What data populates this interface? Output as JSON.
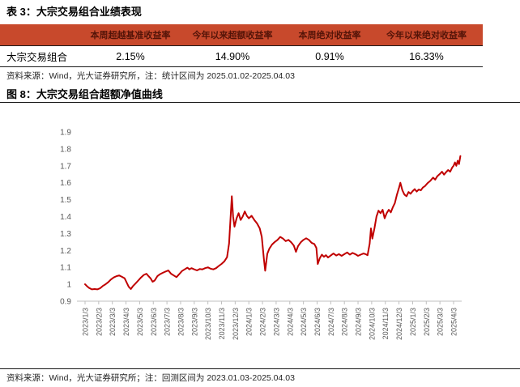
{
  "table": {
    "title": "表 3：大宗交易组合业绩表现",
    "columns": [
      "",
      "本周超越基准收益率",
      "今年以来超额收益率",
      "本周绝对收益率",
      "今年以来绝对收益率"
    ],
    "rows": [
      {
        "name": "大宗交易组合",
        "values": [
          "2.15%",
          "14.90%",
          "0.91%",
          "16.33%"
        ]
      }
    ],
    "source_note": "资料来源：Wind，光大证券研究所，注：统计区间为 2025.01.02-2025.04.03",
    "header_bg": "#C8492C",
    "header_text_color": "#541408"
  },
  "figure": {
    "title": "图 8：大宗交易组合超额净值曲线",
    "source_note": "资料来源：Wind，光大证券研究所；注：回测区间为 2023.01.03-2025.04.03"
  },
  "chart_data": {
    "type": "line",
    "title": "大宗交易组合超额净值曲线",
    "line_color": "#C00000",
    "axis_color": "#BFBFBF",
    "tick_label_color": "#595959",
    "grid": false,
    "legend_position": "none",
    "ylim": [
      0.9,
      1.9
    ],
    "y_tick_labels": [
      "1.9",
      "1.8",
      "1.7",
      "1.6",
      "1.5",
      "1.4",
      "1.3",
      "1.2",
      "1.1",
      "1",
      "0.9"
    ],
    "x_tick_labels": [
      "2023/1/3",
      "2023/2/3",
      "2023/3/3",
      "2023/4/3",
      "2023/5/3",
      "2023/6/3",
      "2023/7/3",
      "2023/8/3",
      "2023/9/3",
      "2023/10/3",
      "2023/11/3",
      "2023/12/3",
      "2024/1/3",
      "2024/2/3",
      "2024/3/3",
      "2024/4/3",
      "2024/5/3",
      "2024/6/3",
      "2024/7/3",
      "2024/8/3",
      "2024/9/3",
      "2024/10/3",
      "2024/11/3",
      "2024/12/3",
      "2025/1/3",
      "2025/2/3",
      "2025/3/3",
      "2025/4/3"
    ],
    "series": [
      {
        "name": "大宗交易组合超额净值",
        "x_unit": "months_since_2023/1/3",
        "points": [
          [
            0,
            1.0
          ],
          [
            0.15,
            0.988
          ],
          [
            0.3,
            0.978
          ],
          [
            0.5,
            0.97
          ],
          [
            0.7,
            0.972
          ],
          [
            0.9,
            0.97
          ],
          [
            1.1,
            0.976
          ],
          [
            1.3,
            0.99
          ],
          [
            1.5,
            1.0
          ],
          [
            1.7,
            1.012
          ],
          [
            1.9,
            1.028
          ],
          [
            2.1,
            1.04
          ],
          [
            2.3,
            1.048
          ],
          [
            2.5,
            1.052
          ],
          [
            2.7,
            1.044
          ],
          [
            2.9,
            1.035
          ],
          [
            3.05,
            1.01
          ],
          [
            3.2,
            0.985
          ],
          [
            3.35,
            0.972
          ],
          [
            3.5,
            0.988
          ],
          [
            3.7,
            1.005
          ],
          [
            3.9,
            1.022
          ],
          [
            4.1,
            1.04
          ],
          [
            4.3,
            1.055
          ],
          [
            4.5,
            1.062
          ],
          [
            4.65,
            1.048
          ],
          [
            4.8,
            1.035
          ],
          [
            4.95,
            1.015
          ],
          [
            5.1,
            1.022
          ],
          [
            5.3,
            1.048
          ],
          [
            5.5,
            1.06
          ],
          [
            5.7,
            1.068
          ],
          [
            5.9,
            1.075
          ],
          [
            6.1,
            1.082
          ],
          [
            6.3,
            1.062
          ],
          [
            6.5,
            1.052
          ],
          [
            6.7,
            1.042
          ],
          [
            6.9,
            1.06
          ],
          [
            7.1,
            1.078
          ],
          [
            7.3,
            1.088
          ],
          [
            7.5,
            1.098
          ],
          [
            7.65,
            1.088
          ],
          [
            7.8,
            1.095
          ],
          [
            8,
            1.088
          ],
          [
            8.2,
            1.082
          ],
          [
            8.4,
            1.09
          ],
          [
            8.6,
            1.088
          ],
          [
            8.8,
            1.095
          ],
          [
            9,
            1.1
          ],
          [
            9.2,
            1.092
          ],
          [
            9.4,
            1.088
          ],
          [
            9.6,
            1.095
          ],
          [
            9.8,
            1.108
          ],
          [
            10,
            1.12
          ],
          [
            10.2,
            1.135
          ],
          [
            10.4,
            1.16
          ],
          [
            10.55,
            1.24
          ],
          [
            10.65,
            1.38
          ],
          [
            10.75,
            1.52
          ],
          [
            10.85,
            1.4
          ],
          [
            10.95,
            1.34
          ],
          [
            11.1,
            1.39
          ],
          [
            11.25,
            1.42
          ],
          [
            11.4,
            1.38
          ],
          [
            11.55,
            1.4
          ],
          [
            11.7,
            1.43
          ],
          [
            11.85,
            1.405
          ],
          [
            12,
            1.39
          ],
          [
            12.2,
            1.405
          ],
          [
            12.4,
            1.38
          ],
          [
            12.6,
            1.36
          ],
          [
            12.8,
            1.33
          ],
          [
            12.95,
            1.28
          ],
          [
            13.1,
            1.15
          ],
          [
            13.2,
            1.08
          ],
          [
            13.35,
            1.18
          ],
          [
            13.5,
            1.21
          ],
          [
            13.7,
            1.235
          ],
          [
            13.9,
            1.25
          ],
          [
            14.1,
            1.262
          ],
          [
            14.3,
            1.28
          ],
          [
            14.5,
            1.27
          ],
          [
            14.7,
            1.255
          ],
          [
            14.9,
            1.262
          ],
          [
            15.1,
            1.248
          ],
          [
            15.3,
            1.228
          ],
          [
            15.45,
            1.192
          ],
          [
            15.6,
            1.225
          ],
          [
            15.8,
            1.248
          ],
          [
            16,
            1.262
          ],
          [
            16.2,
            1.272
          ],
          [
            16.4,
            1.262
          ],
          [
            16.6,
            1.245
          ],
          [
            16.8,
            1.238
          ],
          [
            16.95,
            1.215
          ],
          [
            17.05,
            1.12
          ],
          [
            17.2,
            1.155
          ],
          [
            17.35,
            1.175
          ],
          [
            17.5,
            1.162
          ],
          [
            17.65,
            1.172
          ],
          [
            17.8,
            1.158
          ],
          [
            18,
            1.17
          ],
          [
            18.2,
            1.182
          ],
          [
            18.4,
            1.17
          ],
          [
            18.6,
            1.178
          ],
          [
            18.8,
            1.168
          ],
          [
            19,
            1.178
          ],
          [
            19.2,
            1.188
          ],
          [
            19.4,
            1.175
          ],
          [
            19.6,
            1.185
          ],
          [
            19.8,
            1.178
          ],
          [
            20,
            1.168
          ],
          [
            20.2,
            1.175
          ],
          [
            20.4,
            1.182
          ],
          [
            20.55,
            1.178
          ],
          [
            20.7,
            1.172
          ],
          [
            20.85,
            1.24
          ],
          [
            20.95,
            1.33
          ],
          [
            21.05,
            1.27
          ],
          [
            21.2,
            1.33
          ],
          [
            21.35,
            1.4
          ],
          [
            21.5,
            1.435
          ],
          [
            21.65,
            1.42
          ],
          [
            21.8,
            1.44
          ],
          [
            21.95,
            1.39
          ],
          [
            22.1,
            1.42
          ],
          [
            22.25,
            1.44
          ],
          [
            22.4,
            1.425
          ],
          [
            22.55,
            1.455
          ],
          [
            22.7,
            1.48
          ],
          [
            22.85,
            1.53
          ],
          [
            23,
            1.57
          ],
          [
            23.1,
            1.6
          ],
          [
            23.25,
            1.555
          ],
          [
            23.4,
            1.53
          ],
          [
            23.55,
            1.52
          ],
          [
            23.7,
            1.545
          ],
          [
            23.85,
            1.535
          ],
          [
            24,
            1.55
          ],
          [
            24.15,
            1.562
          ],
          [
            24.3,
            1.548
          ],
          [
            24.45,
            1.56
          ],
          [
            24.6,
            1.555
          ],
          [
            24.75,
            1.572
          ],
          [
            24.9,
            1.58
          ],
          [
            25.1,
            1.598
          ],
          [
            25.3,
            1.612
          ],
          [
            25.5,
            1.63
          ],
          [
            25.65,
            1.618
          ],
          [
            25.8,
            1.638
          ],
          [
            26,
            1.652
          ],
          [
            26.15,
            1.665
          ],
          [
            26.3,
            1.648
          ],
          [
            26.45,
            1.662
          ],
          [
            26.6,
            1.675
          ],
          [
            26.75,
            1.665
          ],
          [
            26.9,
            1.69
          ],
          [
            27,
            1.7
          ],
          [
            27.1,
            1.72
          ],
          [
            27.2,
            1.7
          ],
          [
            27.3,
            1.73
          ],
          [
            27.4,
            1.71
          ],
          [
            27.5,
            1.758
          ]
        ]
      }
    ]
  }
}
